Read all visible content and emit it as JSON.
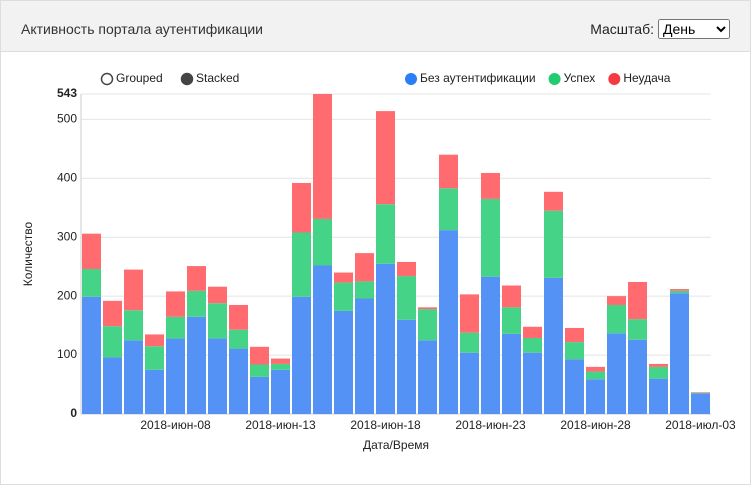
{
  "header": {
    "title": "Активность портала аутентификации",
    "scale_label": "Масштаб:",
    "scale_value": "День"
  },
  "chart_data": {
    "type": "bar",
    "stacked": true,
    "modes": [
      "Grouped",
      "Stacked"
    ],
    "selected_mode": 1,
    "x_label": "Дата/Время",
    "y_label": "Количество",
    "categories": [
      null,
      null,
      null,
      null,
      "2018-июн-08",
      null,
      null,
      null,
      null,
      "2018-июн-13",
      null,
      null,
      null,
      null,
      "2018-июн-18",
      null,
      null,
      null,
      null,
      "2018-июн-23",
      null,
      null,
      null,
      null,
      "2018-июн-28",
      null,
      null,
      null,
      null,
      "2018-июл-03"
    ],
    "series": [
      {
        "name": "Без аутентификации",
        "color": "#5592f5",
        "legend_color": "#2a7ff6",
        "values": [
          199,
          96,
          125,
          75,
          128,
          165,
          128,
          111,
          63,
          75,
          199,
          252,
          175,
          196,
          255,
          160,
          125,
          312,
          104,
          233,
          136,
          104,
          231,
          93,
          59,
          137,
          126,
          60,
          205,
          35
        ]
      },
      {
        "name": "Успех",
        "color": "#45d487",
        "legend_color": "#22cc6e",
        "values": [
          47,
          53,
          51,
          40,
          37,
          44,
          60,
          32,
          21,
          10,
          109,
          79,
          48,
          29,
          101,
          74,
          53,
          71,
          34,
          132,
          45,
          25,
          114,
          29,
          13,
          48,
          35,
          20,
          4,
          1
        ]
      },
      {
        "name": "Неудача",
        "color": "#ff6b6e",
        "legend_color": "#f53b42",
        "values": [
          60,
          43,
          69,
          20,
          43,
          42,
          28,
          42,
          30,
          9,
          84,
          212,
          17,
          48,
          158,
          24,
          3,
          57,
          65,
          44,
          37,
          19,
          32,
          24,
          8,
          15,
          63,
          5,
          3,
          1
        ]
      }
    ],
    "ylim": [
      0,
      543
    ],
    "yticks": [
      0,
      100,
      200,
      300,
      400,
      500,
      543
    ],
    "grid": true
  }
}
